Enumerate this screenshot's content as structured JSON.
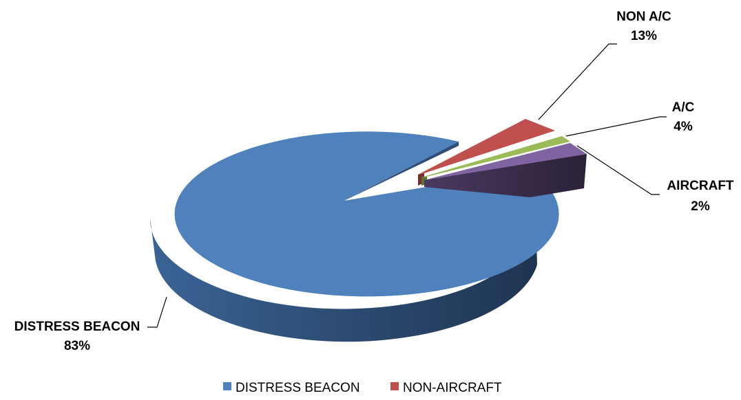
{
  "chart_data": {
    "type": "pie",
    "style": "3d-exploded",
    "title": "",
    "slices": [
      {
        "label": "DISTRESS BEACON",
        "percent_label": "83%",
        "value": 83,
        "color": "#4F81BD"
      },
      {
        "label": "NON A/C",
        "percent_label": "13%",
        "value": 13,
        "color": "#C0504D"
      },
      {
        "label": "A/C",
        "percent_label": "4%",
        "value": 4,
        "color": "#9BBB59"
      },
      {
        "label": "AIRCRAFT",
        "percent_label": "2%",
        "value": 2,
        "color": "#8064A2"
      }
    ],
    "legend": {
      "placement": "bottom",
      "items": [
        {
          "label": "DISTRESS BEACON",
          "color": "#4F81BD"
        },
        {
          "label": "NON-AIRCRAFT",
          "color": "#C0504D"
        }
      ]
    }
  }
}
